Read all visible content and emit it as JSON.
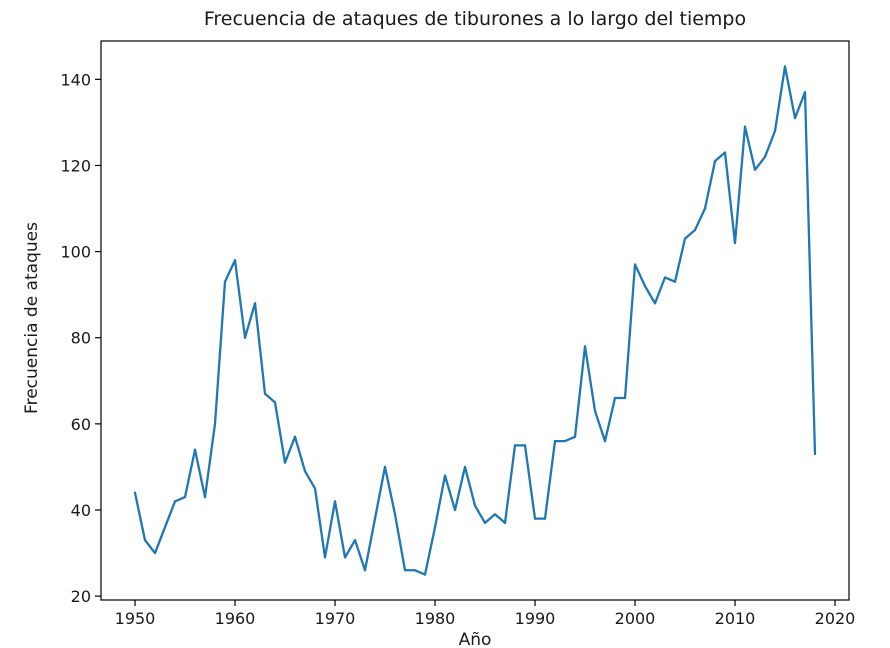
{
  "chart_data": {
    "type": "line",
    "title": "Frecuencia de ataques de tiburones a lo largo del tiempo",
    "xlabel": "Año",
    "ylabel": "Frecuencia de ataques",
    "xlim": [
      1946.6,
      2021.4
    ],
    "ylim": [
      19.1,
      148.9
    ],
    "x_ticks": [
      1950,
      1960,
      1970,
      1980,
      1990,
      2000,
      2010,
      2020
    ],
    "y_ticks": [
      20,
      40,
      60,
      80,
      100,
      120,
      140
    ],
    "grid": false,
    "line_color": "#1f77b4",
    "series": [
      {
        "x": [
          1950,
          1951,
          1952,
          1953,
          1954,
          1955,
          1956,
          1957,
          1958,
          1959,
          1960,
          1961,
          1962,
          1963,
          1964,
          1965,
          1966,
          1967,
          1968,
          1969,
          1970,
          1971,
          1972,
          1973,
          1974,
          1975,
          1976,
          1977,
          1978,
          1979,
          1980,
          1981,
          1982,
          1983,
          1984,
          1985,
          1986,
          1987,
          1988,
          1989,
          1990,
          1991,
          1992,
          1993,
          1994,
          1995,
          1996,
          1997,
          1998,
          1999,
          2000,
          2001,
          2002,
          2003,
          2004,
          2005,
          2006,
          2007,
          2008,
          2009,
          2010,
          2011,
          2012,
          2013,
          2014,
          2015,
          2016,
          2017,
          2018
        ],
        "values": [
          44,
          33,
          30,
          36,
          42,
          43,
          54,
          43,
          60,
          93,
          98,
          80,
          88,
          67,
          65,
          51,
          57,
          49,
          45,
          29,
          42,
          29,
          33,
          26,
          38,
          50,
          39,
          26,
          26,
          25,
          36,
          48,
          40,
          50,
          41,
          37,
          39,
          37,
          55,
          55,
          38,
          38,
          56,
          56,
          57,
          78,
          63,
          56,
          66,
          66,
          97,
          92,
          88,
          94,
          93,
          103,
          105,
          110,
          121,
          123,
          102,
          129,
          119,
          122,
          128,
          143,
          131,
          137,
          53
        ]
      }
    ]
  }
}
